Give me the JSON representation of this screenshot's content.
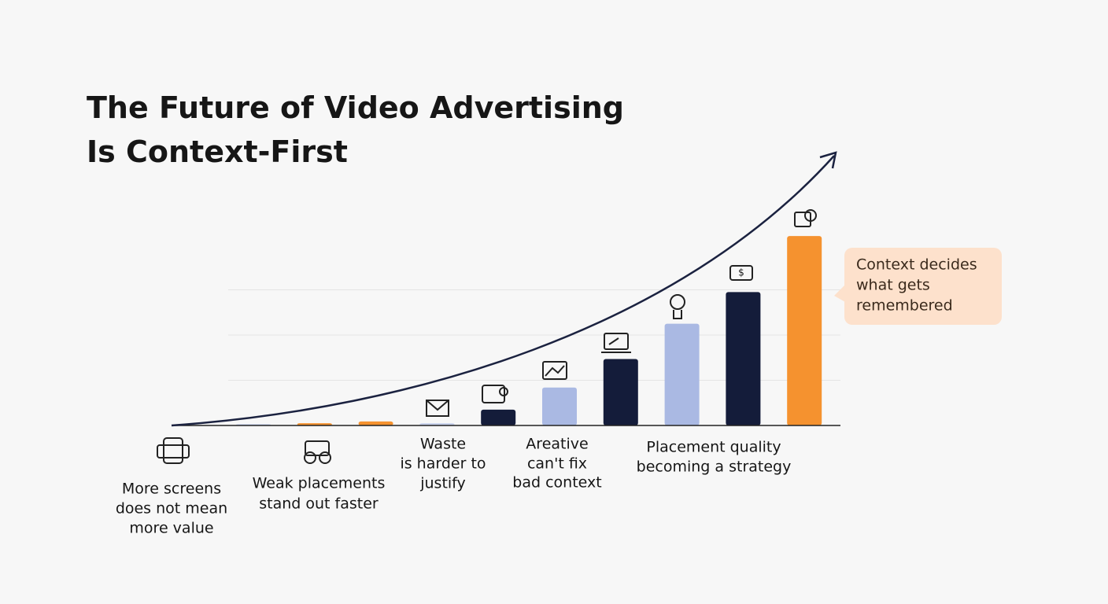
{
  "chart_data": {
    "type": "bar",
    "title_lines": [
      "The Future of Video Advertising",
      "Is Context-First"
    ],
    "categories": [
      null,
      null,
      null,
      null,
      null,
      null,
      null,
      null,
      null,
      null
    ],
    "values": [
      0.03,
      0.05,
      0.09,
      0.05,
      0.35,
      0.84,
      1.47,
      2.25,
      2.95,
      4.19
    ],
    "colors": [
      "#c9d3ee",
      "#f5922f",
      "#f5922f",
      "#c9d3ee",
      "#141c3a",
      "#aab9e3",
      "#141c3a",
      "#aab9e3",
      "#141c3a",
      "#f5922f"
    ],
    "ylim": [
      0,
      4.2
    ],
    "grid_values": [
      1,
      2,
      3
    ],
    "annotations": [
      {
        "lines": [
          "More screens",
          "does not mean",
          "more value"
        ]
      },
      {
        "lines": [
          "Weak placements",
          "stand out faster"
        ]
      },
      {
        "lines": [
          "Waste",
          "is harder to",
          "justify"
        ]
      },
      {
        "lines": [
          "Areative",
          "can't fix",
          "bad context"
        ]
      },
      {
        "lines": [
          "Placement quality",
          "becoming a strategy"
        ]
      }
    ],
    "callout_lines": [
      "Context decides",
      "what gets",
      "remembered"
    ]
  }
}
